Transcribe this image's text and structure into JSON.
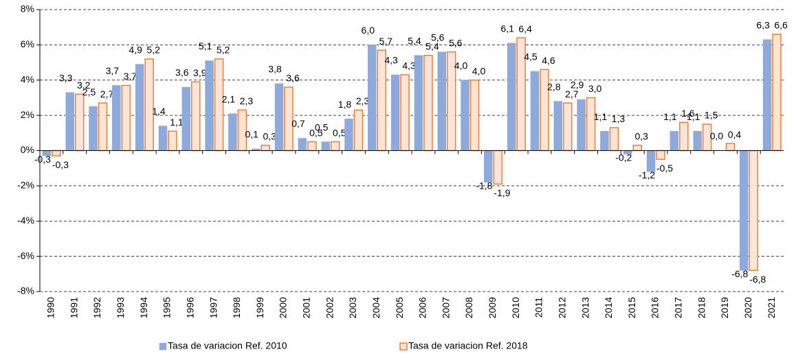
{
  "chart_data": {
    "type": "bar",
    "categories": [
      "1990",
      "1991",
      "1992",
      "1993",
      "1994",
      "1995",
      "1996",
      "1997",
      "1998",
      "1999",
      "2000",
      "2001",
      "2002",
      "2003",
      "2004",
      "2005",
      "2006",
      "2007",
      "2008",
      "2009",
      "2010",
      "2011",
      "2012",
      "2013",
      "2014",
      "2015",
      "2016",
      "2017",
      "2018",
      "2019",
      "2020",
      "2021"
    ],
    "series": [
      {
        "name": "Tasa de variacion Ref. 2010",
        "color": "#8ea9db",
        "stroke": "#8ea9db",
        "values": [
          -0.3,
          3.3,
          2.5,
          3.7,
          4.9,
          1.4,
          3.6,
          5.1,
          2.1,
          0.1,
          3.8,
          0.7,
          0.5,
          1.8,
          6.0,
          4.3,
          5.4,
          5.6,
          4.0,
          -1.8,
          6.1,
          4.5,
          2.8,
          2.9,
          1.1,
          -0.2,
          -1.2,
          1.1,
          1.1,
          0.0,
          -6.8,
          6.3
        ],
        "value_labels": [
          "-0,3",
          "3,3",
          "2,5",
          "3,7",
          "4,9",
          "1,4",
          "3,6",
          "5,1",
          "2,1",
          "0,1",
          "3,8",
          "0,7",
          "0,5",
          "1,8",
          "6,0",
          "4,3",
          "5,4",
          "5,6",
          "4,0",
          "-1,8",
          "6,1",
          "4,5",
          "2,8",
          "2,9",
          "1,1",
          "-0,2",
          "-1,2",
          "1,1",
          "1,1",
          "0,0",
          "-6,8",
          "6,3"
        ]
      },
      {
        "name": "Tasa de variacion Ref. 2018",
        "color": "#fce4d6",
        "stroke": "#ed7d31",
        "values": [
          -0.3,
          3.2,
          2.7,
          3.7,
          5.2,
          1.1,
          3.9,
          5.2,
          2.3,
          0.3,
          3.6,
          0.5,
          0.5,
          2.3,
          5.7,
          4.3,
          5.4,
          5.6,
          4.0,
          -1.9,
          6.4,
          4.6,
          2.7,
          3.0,
          1.3,
          0.3,
          -0.5,
          1.6,
          1.5,
          0.4,
          -6.8,
          6.6
        ],
        "value_labels": [
          "-0,3",
          "3,2",
          "2,7",
          "3,7",
          "5,2",
          "1,1",
          "3,9",
          "5,2",
          "2,3",
          "0,3",
          "3,6",
          "0,5",
          "0,5",
          "2,3",
          "5,7",
          "4,3",
          "5,4",
          "5,6",
          "4,0",
          "-1,9",
          "6,4",
          "4,6",
          "2,7",
          "3,0",
          "1,3",
          "0,3",
          "-0,5",
          "1,6",
          "1,5",
          "0,4",
          "-6,8",
          "6,6"
        ]
      }
    ],
    "ylim": [
      -8,
      8
    ],
    "yticks": [
      {
        "value": -8,
        "label": "-8%"
      },
      {
        "value": -6,
        "label": "-6%"
      },
      {
        "value": -4,
        "label": "-4%"
      },
      {
        "value": -2,
        "label": "-2%"
      },
      {
        "value": 0,
        "label": "0%"
      },
      {
        "value": 2,
        "label": "2%"
      },
      {
        "value": 4,
        "label": "4%"
      },
      {
        "value": 6,
        "label": "6%"
      },
      {
        "value": 8,
        "label": "8%"
      }
    ],
    "grid": true,
    "legend": "bottom"
  }
}
